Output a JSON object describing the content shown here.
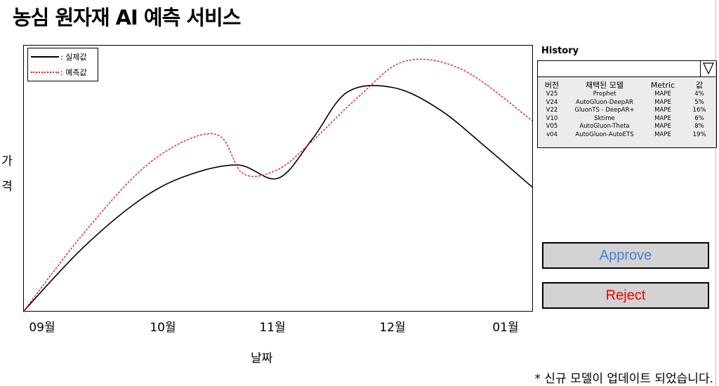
{
  "title": "농심 원자재 AI 예측 서비스",
  "chart_data": {
    "type": "line",
    "xlabel": "날짜",
    "ylabel": "가격",
    "x_ticks": [
      "09월",
      "10월",
      "11월",
      "12월",
      "01월"
    ],
    "grid": false,
    "legend_position": "top-left",
    "series": [
      {
        "name": ": 실제값",
        "color": "#000000",
        "style": "solid",
        "x": [
          0,
          0.5,
          1.0,
          1.4,
          1.85,
          2.2,
          2.5,
          2.8,
          3.2,
          3.6,
          4.0,
          4.4
        ],
        "y": [
          0,
          28,
          50,
          61,
          66,
          60,
          78,
          99,
          101,
          91,
          74,
          56
        ]
      },
      {
        "name": ": 예측값",
        "color": "#e02020",
        "style": "dotted",
        "x": [
          0,
          0.5,
          1.0,
          1.4,
          1.7,
          1.9,
          2.2,
          2.5,
          2.9,
          3.3,
          3.8,
          4.4
        ],
        "y": [
          0,
          34,
          63,
          77,
          79,
          62,
          64,
          77,
          97,
          113,
          109,
          86
        ]
      }
    ]
  },
  "history": {
    "title": "History",
    "selected": "",
    "columns": [
      "버전",
      "채택된 모델",
      "Metric",
      "값"
    ],
    "rows": [
      [
        "V25",
        "Prophet",
        "MAPE",
        "4%"
      ],
      [
        "V24",
        "AutoGluon-DeepAR",
        "MAPE",
        "5%"
      ],
      [
        "V22",
        "GluonTS - DeepAR+",
        "MAPE",
        "16%"
      ],
      [
        "V10",
        "Sktime",
        "MAPE",
        "6%"
      ],
      [
        "V05",
        "AutoGluon-Theta",
        "MAPE",
        "8%"
      ],
      [
        "v04",
        "AutoGluon-AutoETS",
        "MAPE",
        "19%"
      ]
    ]
  },
  "buttons": {
    "approve": "Approve",
    "reject": "Reject"
  },
  "notice": "* 신규 모델이 업데이트 되었습니다."
}
